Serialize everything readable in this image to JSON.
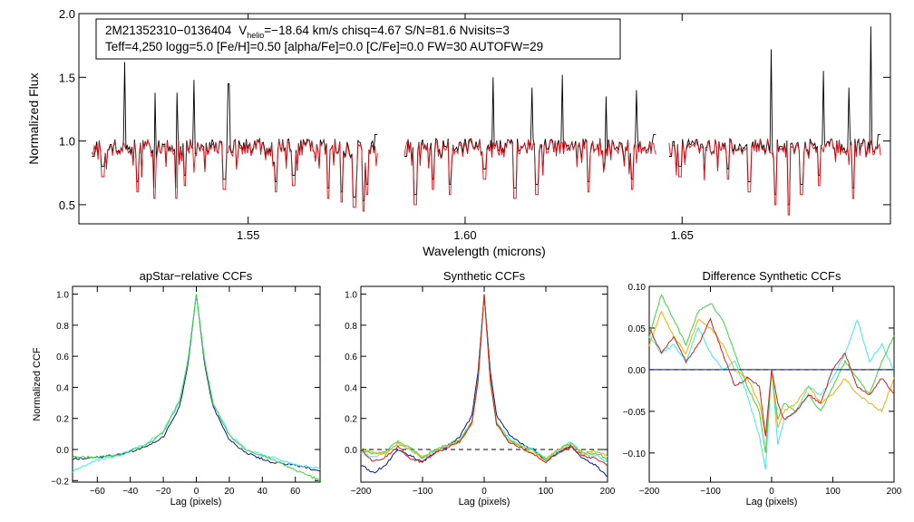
{
  "colors": {
    "black": "#000000",
    "red": "#e0141a",
    "blue": "#0a1a8c",
    "cyan": "#40e8f0",
    "green": "#3ed33e",
    "orange": "#f0b000",
    "darkred": "#d02020"
  },
  "chart_data": [
    {
      "id": "spectrum",
      "type": "line",
      "xlabel": "Wavelength (microns)",
      "ylabel": "Normalized Flux",
      "xlim": [
        1.511,
        1.698
      ],
      "ylim": [
        0.35,
        2.0
      ],
      "xticks": [
        1.55,
        1.6,
        1.65
      ],
      "xtick_labels": [
        "1.55",
        "1.60",
        "1.65"
      ],
      "yticks": [
        0.5,
        1.0,
        1.5,
        2.0
      ],
      "ytick_labels": [
        "0.5",
        "1.0",
        "1.5",
        "2.0"
      ],
      "annotation": {
        "star": "2M21352310−0136404",
        "vhelio_pre": "V",
        "vhelio_sub": "helio",
        "line1_rest": "=−18.64 km/s  chisq=4.67  S/N=81.6  Nvisits=3",
        "line2": "Teff=4,250 logg=5.0 [Fe/H]=0.50 [alpha/Fe]=0.0 [C/Fe]=0.0 FW=30 AUTOFW=29"
      },
      "segments": [
        [
          1.514,
          1.58
        ],
        [
          1.586,
          1.644
        ],
        [
          1.647,
          1.696
        ]
      ],
      "series": [
        {
          "name": "observed",
          "color": "black"
        },
        {
          "name": "model",
          "color": "red"
        }
      ],
      "emission_spikes": [
        {
          "x": 1.5215,
          "y": 1.62
        },
        {
          "x": 1.5285,
          "y": 1.38
        },
        {
          "x": 1.5335,
          "y": 1.38
        },
        {
          "x": 1.5375,
          "y": 1.48
        },
        {
          "x": 1.5455,
          "y": 1.45
        },
        {
          "x": 1.6065,
          "y": 1.5
        },
        {
          "x": 1.6155,
          "y": 1.42
        },
        {
          "x": 1.6225,
          "y": 1.52
        },
        {
          "x": 1.6325,
          "y": 1.35
        },
        {
          "x": 1.6395,
          "y": 1.4
        },
        {
          "x": 1.6465,
          "y": 1.58
        },
        {
          "x": 1.6475,
          "y": 1.95
        },
        {
          "x": 1.6705,
          "y": 1.72
        },
        {
          "x": 1.6825,
          "y": 1.55
        },
        {
          "x": 1.6885,
          "y": 1.42
        },
        {
          "x": 1.6935,
          "y": 1.9
        }
      ],
      "absorption_dips": [
        {
          "x": 1.5165,
          "y": 0.72
        },
        {
          "x": 1.5245,
          "y": 0.6
        },
        {
          "x": 1.5285,
          "y": 0.55
        },
        {
          "x": 1.5335,
          "y": 0.55
        },
        {
          "x": 1.5355,
          "y": 0.65
        },
        {
          "x": 1.5445,
          "y": 0.62
        },
        {
          "x": 1.5565,
          "y": 0.6
        },
        {
          "x": 1.5605,
          "y": 0.65
        },
        {
          "x": 1.5685,
          "y": 0.55
        },
        {
          "x": 1.5715,
          "y": 0.52
        },
        {
          "x": 1.5745,
          "y": 0.48
        },
        {
          "x": 1.5765,
          "y": 0.45
        },
        {
          "x": 1.5775,
          "y": 0.58
        },
        {
          "x": 1.5885,
          "y": 0.5
        },
        {
          "x": 1.5925,
          "y": 0.62
        },
        {
          "x": 1.5965,
          "y": 0.58
        },
        {
          "x": 1.6045,
          "y": 0.7
        },
        {
          "x": 1.6115,
          "y": 0.55
        },
        {
          "x": 1.6165,
          "y": 0.58
        },
        {
          "x": 1.6285,
          "y": 0.6
        },
        {
          "x": 1.6385,
          "y": 0.62
        },
        {
          "x": 1.6495,
          "y": 0.72
        },
        {
          "x": 1.6605,
          "y": 0.7
        },
        {
          "x": 1.6655,
          "y": 0.6
        },
        {
          "x": 1.6715,
          "y": 0.5
        },
        {
          "x": 1.6745,
          "y": 0.42
        },
        {
          "x": 1.6775,
          "y": 0.58
        },
        {
          "x": 1.6815,
          "y": 0.65
        },
        {
          "x": 1.6895,
          "y": 0.55
        }
      ]
    },
    {
      "id": "apstar",
      "type": "line",
      "title": "apStar−relative CCFs",
      "xlabel": "Lag (pixels)",
      "ylabel": "Normalized CCF",
      "xlim": [
        -75,
        75
      ],
      "ylim": [
        -0.21,
        1.05
      ],
      "xticks": [
        -60,
        -40,
        -20,
        0,
        20,
        40,
        60
      ],
      "xtick_labels": [
        "−60",
        "−40",
        "−20",
        "0",
        "20",
        "40",
        "60"
      ],
      "yticks": [
        -0.2,
        0.0,
        0.2,
        0.4,
        0.6,
        0.8,
        1.0
      ],
      "ytick_labels": [
        "−0.2",
        "0.0",
        "0.2",
        "0.4",
        "0.6",
        "0.8",
        "1.0"
      ],
      "series": [
        {
          "name": "visit1",
          "color": "blue",
          "x": [
            -75,
            -60,
            -45,
            -30,
            -20,
            -10,
            -5,
            0,
            5,
            10,
            20,
            30,
            45,
            60,
            75
          ],
          "y": [
            -0.06,
            -0.05,
            -0.03,
            0.02,
            0.08,
            0.28,
            0.55,
            1.0,
            0.55,
            0.28,
            0.06,
            -0.02,
            -0.08,
            -0.1,
            -0.14
          ]
        },
        {
          "name": "visit2",
          "color": "cyan",
          "x": [
            -75,
            -60,
            -45,
            -30,
            -20,
            -10,
            -5,
            0,
            5,
            10,
            20,
            30,
            45,
            60,
            75
          ],
          "y": [
            -0.14,
            -0.07,
            -0.03,
            0.04,
            0.12,
            0.32,
            0.58,
            1.0,
            0.58,
            0.3,
            0.1,
            0.0,
            -0.05,
            -0.1,
            -0.12
          ]
        },
        {
          "name": "visit3",
          "color": "green",
          "x": [
            -75,
            -60,
            -45,
            -30,
            -20,
            -10,
            -5,
            0,
            5,
            10,
            20,
            30,
            45,
            60,
            75
          ],
          "y": [
            -0.05,
            -0.05,
            -0.03,
            0.03,
            0.11,
            0.31,
            0.57,
            1.0,
            0.57,
            0.3,
            0.09,
            0.0,
            -0.06,
            -0.13,
            -0.2
          ]
        }
      ]
    },
    {
      "id": "synthetic",
      "type": "line",
      "title": "Synthetic CCFs",
      "xlabel": "Lag (pixels)",
      "ylabel": "",
      "xlim": [
        -200,
        200
      ],
      "ylim": [
        -0.21,
        1.05
      ],
      "xticks": [
        -200,
        -100,
        0,
        100,
        200
      ],
      "xtick_labels": [
        "−200",
        "−100",
        "0",
        "100",
        "200"
      ],
      "yticks": [
        0.0,
        0.2,
        0.4,
        0.6,
        0.8,
        1.0
      ],
      "ytick_labels": [
        "0.0",
        "0.2",
        "0.4",
        "0.6",
        "0.8",
        "1.0"
      ],
      "reference_line": 0.0,
      "series": [
        {
          "name": "blue",
          "color": "blue",
          "x": [
            -200,
            -180,
            -160,
            -140,
            -120,
            -100,
            -80,
            -60,
            -40,
            -20,
            -10,
            0,
            10,
            20,
            40,
            60,
            80,
            100,
            120,
            140,
            160,
            180,
            200
          ],
          "y": [
            -0.1,
            -0.15,
            -0.1,
            0.0,
            -0.04,
            -0.08,
            -0.02,
            0.02,
            0.08,
            0.22,
            0.5,
            1.0,
            0.5,
            0.22,
            0.1,
            0.04,
            0.0,
            -0.08,
            -0.02,
            0.02,
            -0.06,
            -0.1,
            -0.17
          ]
        },
        {
          "name": "cyan",
          "color": "cyan",
          "x": [
            -200,
            -180,
            -160,
            -140,
            -120,
            -100,
            -80,
            -60,
            -40,
            -20,
            -10,
            0,
            10,
            20,
            40,
            60,
            80,
            100,
            120,
            140,
            160,
            180,
            200
          ],
          "y": [
            -0.02,
            -0.05,
            -0.02,
            0.03,
            0.0,
            -0.06,
            -0.01,
            0.02,
            0.06,
            0.18,
            0.45,
            1.0,
            0.45,
            0.18,
            0.07,
            0.03,
            0.0,
            -0.07,
            -0.01,
            0.05,
            -0.03,
            -0.04,
            -0.08
          ]
        },
        {
          "name": "green",
          "color": "green",
          "x": [
            -200,
            -180,
            -160,
            -140,
            -120,
            -100,
            -80,
            -60,
            -40,
            -20,
            -10,
            0,
            10,
            20,
            40,
            60,
            80,
            100,
            120,
            140,
            160,
            180,
            200
          ],
          "y": [
            0.0,
            -0.03,
            -0.01,
            0.05,
            0.01,
            -0.05,
            0.0,
            0.03,
            0.06,
            0.17,
            0.44,
            1.0,
            0.44,
            0.17,
            0.06,
            0.02,
            -0.01,
            -0.06,
            0.0,
            0.04,
            -0.02,
            -0.02,
            -0.06
          ]
        },
        {
          "name": "orange",
          "color": "orange",
          "x": [
            -200,
            -180,
            -160,
            -140,
            -120,
            -100,
            -80,
            -60,
            -40,
            -20,
            -10,
            0,
            10,
            20,
            40,
            60,
            80,
            100,
            120,
            140,
            160,
            180,
            200
          ],
          "y": [
            0.01,
            -0.02,
            -0.03,
            0.04,
            0.0,
            -0.05,
            -0.01,
            0.02,
            0.05,
            0.16,
            0.43,
            1.0,
            0.43,
            0.16,
            0.05,
            0.02,
            -0.02,
            -0.07,
            0.0,
            0.03,
            -0.03,
            -0.01,
            -0.04
          ]
        },
        {
          "name": "red",
          "color": "darkred",
          "x": [
            -200,
            -180,
            -160,
            -140,
            -120,
            -100,
            -80,
            -60,
            -40,
            -20,
            -10,
            0,
            10,
            20,
            40,
            60,
            80,
            100,
            120,
            140,
            160,
            180,
            200
          ],
          "y": [
            0.0,
            -0.08,
            -0.05,
            0.02,
            -0.06,
            -0.08,
            -0.02,
            0.01,
            0.05,
            0.17,
            0.44,
            1.0,
            0.44,
            0.17,
            0.05,
            0.01,
            -0.03,
            -0.08,
            -0.02,
            0.02,
            -0.04,
            -0.06,
            -0.1
          ]
        }
      ]
    },
    {
      "id": "difference",
      "type": "line",
      "title": "Difference Synthetic CCFs",
      "xlabel": "Lag (pixels)",
      "ylabel": "",
      "xlim": [
        -200,
        200
      ],
      "ylim": [
        -0.135,
        0.1
      ],
      "xticks": [
        -200,
        -100,
        0,
        100,
        200
      ],
      "xtick_labels": [
        "−200",
        "−100",
        "0",
        "100",
        "200"
      ],
      "yticks": [
        -0.1,
        -0.05,
        0.0,
        0.05,
        0.1
      ],
      "ytick_labels": [
        "−0.10",
        "−0.05",
        "0.00",
        "0.05",
        "0.10"
      ],
      "series": [
        {
          "name": "blue",
          "color": "blue",
          "x": [
            -200,
            200
          ],
          "y": [
            0.0,
            0.0
          ]
        },
        {
          "name": "cyan",
          "color": "cyan",
          "x": [
            -200,
            -180,
            -160,
            -140,
            -120,
            -100,
            -80,
            -60,
            -40,
            -20,
            -10,
            0,
            10,
            20,
            40,
            60,
            80,
            100,
            120,
            140,
            160,
            180,
            200
          ],
          "y": [
            0.04,
            0.02,
            0.03,
            0.01,
            0.05,
            0.02,
            0.0,
            0.01,
            -0.03,
            -0.08,
            -0.12,
            0.0,
            -0.09,
            -0.06,
            -0.05,
            -0.02,
            -0.03,
            -0.01,
            0.02,
            0.06,
            0.01,
            0.03,
            0.0
          ]
        },
        {
          "name": "green",
          "color": "green",
          "x": [
            -200,
            -180,
            -160,
            -140,
            -120,
            -100,
            -80,
            -60,
            -40,
            -20,
            -10,
            0,
            10,
            20,
            40,
            60,
            80,
            100,
            120,
            140,
            160,
            180,
            200
          ],
          "y": [
            0.04,
            0.09,
            0.06,
            0.03,
            0.07,
            0.08,
            0.06,
            0.02,
            -0.02,
            -0.05,
            -0.1,
            0.0,
            -0.06,
            -0.04,
            -0.05,
            -0.03,
            -0.05,
            -0.02,
            0.01,
            -0.01,
            -0.03,
            0.01,
            0.04
          ]
        },
        {
          "name": "orange",
          "color": "orange",
          "x": [
            -200,
            -180,
            -160,
            -140,
            -120,
            -100,
            -80,
            -60,
            -40,
            -20,
            -10,
            0,
            10,
            20,
            40,
            60,
            80,
            100,
            120,
            140,
            160,
            180,
            200
          ],
          "y": [
            0.03,
            0.07,
            0.04,
            0.02,
            0.06,
            0.05,
            0.03,
            0.0,
            -0.01,
            -0.04,
            -0.08,
            0.0,
            -0.07,
            -0.05,
            -0.04,
            -0.02,
            -0.04,
            -0.03,
            -0.01,
            -0.03,
            -0.04,
            -0.05,
            -0.01
          ]
        },
        {
          "name": "red",
          "color": "darkred",
          "x": [
            -200,
            -180,
            -160,
            -140,
            -120,
            -100,
            -80,
            -60,
            -40,
            -20,
            -10,
            0,
            10,
            20,
            40,
            60,
            80,
            100,
            120,
            140,
            160,
            180,
            200
          ],
          "y": [
            0.05,
            0.02,
            0.04,
            0.01,
            0.03,
            0.06,
            0.02,
            -0.02,
            -0.01,
            -0.02,
            -0.08,
            0.0,
            -0.04,
            -0.06,
            -0.05,
            -0.03,
            -0.04,
            0.0,
            0.02,
            -0.02,
            -0.03,
            -0.01,
            -0.03
          ]
        }
      ]
    }
  ]
}
